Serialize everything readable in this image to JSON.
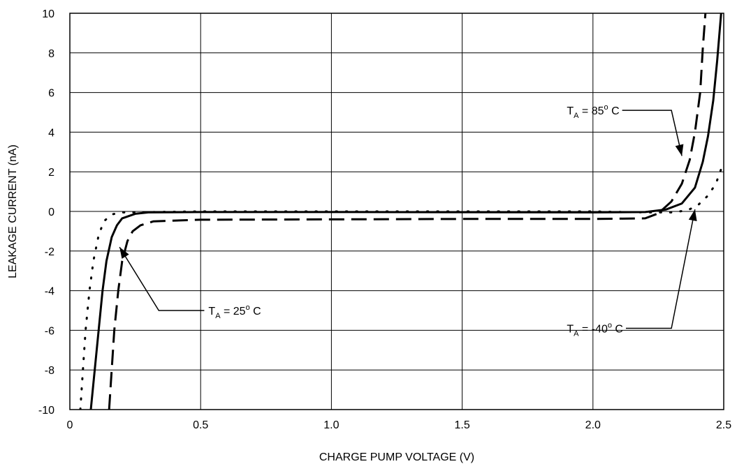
{
  "chart_data": {
    "type": "line",
    "title": "",
    "xlabel": "CHARGE PUMP VOLTAGE (V)",
    "ylabel": "LEAKAGE CURRENT (nA)",
    "xlim": [
      0,
      2.5
    ],
    "ylim": [
      -10,
      10
    ],
    "grid": true,
    "x_ticks": [
      0,
      0.5,
      1.0,
      1.5,
      2.0,
      2.5
    ],
    "x_tick_labels": [
      "0",
      "0.5",
      "1.0",
      "1.5",
      "2.0",
      "2.5"
    ],
    "y_ticks": [
      10,
      8,
      6,
      4,
      2,
      0,
      -2,
      -4,
      -6,
      -8,
      -10
    ],
    "y_tick_labels": [
      "10",
      "8",
      "6",
      "4",
      "2",
      "0",
      "-2",
      "-4",
      "-6",
      "-8",
      "-10"
    ],
    "series": [
      {
        "key": "t25",
        "style": "solid",
        "color": "#000000",
        "points": [
          [
            0.08,
            -10
          ],
          [
            0.095,
            -8
          ],
          [
            0.11,
            -6
          ],
          [
            0.125,
            -4
          ],
          [
            0.14,
            -2.5
          ],
          [
            0.16,
            -1.3
          ],
          [
            0.18,
            -0.7
          ],
          [
            0.2,
            -0.35
          ],
          [
            0.25,
            -0.12
          ],
          [
            0.3,
            -0.05
          ],
          [
            0.5,
            -0.03
          ],
          [
            1.0,
            -0.03
          ],
          [
            1.5,
            -0.04
          ],
          [
            2.0,
            -0.05
          ],
          [
            2.2,
            -0.03
          ],
          [
            2.28,
            0.1
          ],
          [
            2.34,
            0.4
          ],
          [
            2.39,
            1.2
          ],
          [
            2.42,
            2.5
          ],
          [
            2.44,
            3.8
          ],
          [
            2.46,
            5.6
          ],
          [
            2.475,
            7.6
          ],
          [
            2.49,
            10
          ]
        ]
      },
      {
        "key": "t85",
        "style": "dashed",
        "color": "#000000",
        "points": [
          [
            0.15,
            -10
          ],
          [
            0.16,
            -8
          ],
          [
            0.17,
            -6
          ],
          [
            0.185,
            -4
          ],
          [
            0.2,
            -2.5
          ],
          [
            0.22,
            -1.5
          ],
          [
            0.24,
            -1.0
          ],
          [
            0.27,
            -0.7
          ],
          [
            0.32,
            -0.5
          ],
          [
            0.5,
            -0.42
          ],
          [
            1.0,
            -0.4
          ],
          [
            1.5,
            -0.38
          ],
          [
            2.0,
            -0.38
          ],
          [
            2.2,
            -0.35
          ],
          [
            2.25,
            -0.1
          ],
          [
            2.3,
            0.5
          ],
          [
            2.34,
            1.4
          ],
          [
            2.37,
            2.6
          ],
          [
            2.39,
            4.0
          ],
          [
            2.41,
            6.0
          ],
          [
            2.42,
            8.2
          ],
          [
            2.43,
            10
          ]
        ]
      },
      {
        "key": "tm40",
        "style": "dotted",
        "color": "#000000",
        "points": [
          [
            0.04,
            -10
          ],
          [
            0.05,
            -8
          ],
          [
            0.06,
            -6
          ],
          [
            0.075,
            -4
          ],
          [
            0.09,
            -2.5
          ],
          [
            0.11,
            -1.2
          ],
          [
            0.13,
            -0.5
          ],
          [
            0.16,
            -0.15
          ],
          [
            0.2,
            -0.05
          ],
          [
            0.5,
            0
          ],
          [
            1.0,
            0
          ],
          [
            1.5,
            0
          ],
          [
            2.0,
            0
          ],
          [
            2.2,
            -0.05
          ],
          [
            2.3,
            -0.05
          ],
          [
            2.36,
            0.05
          ],
          [
            2.4,
            0.3
          ],
          [
            2.44,
            0.8
          ],
          [
            2.47,
            1.4
          ],
          [
            2.5,
            2.5
          ]
        ]
      }
    ],
    "annotations": [
      {
        "series": "t85",
        "label_T": "T",
        "label_sub": "A",
        "label_eq": " = 85",
        "label_sup": "o",
        "label_unit": " C",
        "x": 1.9,
        "y": 5.1,
        "side": "left",
        "elbow_x": 2.3,
        "arrow_to": [
          2.34,
          2.8
        ]
      },
      {
        "series": "t25",
        "label_T": "T",
        "label_sub": "A",
        "label_eq": " = 25",
        "label_sup": "o",
        "label_unit": " C",
        "x": 0.53,
        "y": -5.0,
        "side": "right",
        "elbow_x": 0.34,
        "arrow_to": [
          0.19,
          -1.8
        ]
      },
      {
        "series": "tm40",
        "label_T": "T",
        "label_sub": "A",
        "label_eq": " = -40",
        "label_sup": "o",
        "label_unit": " C",
        "x": 1.9,
        "y": -5.9,
        "side": "left",
        "elbow_x": 2.3,
        "arrow_to": [
          2.39,
          0.1
        ]
      }
    ]
  }
}
